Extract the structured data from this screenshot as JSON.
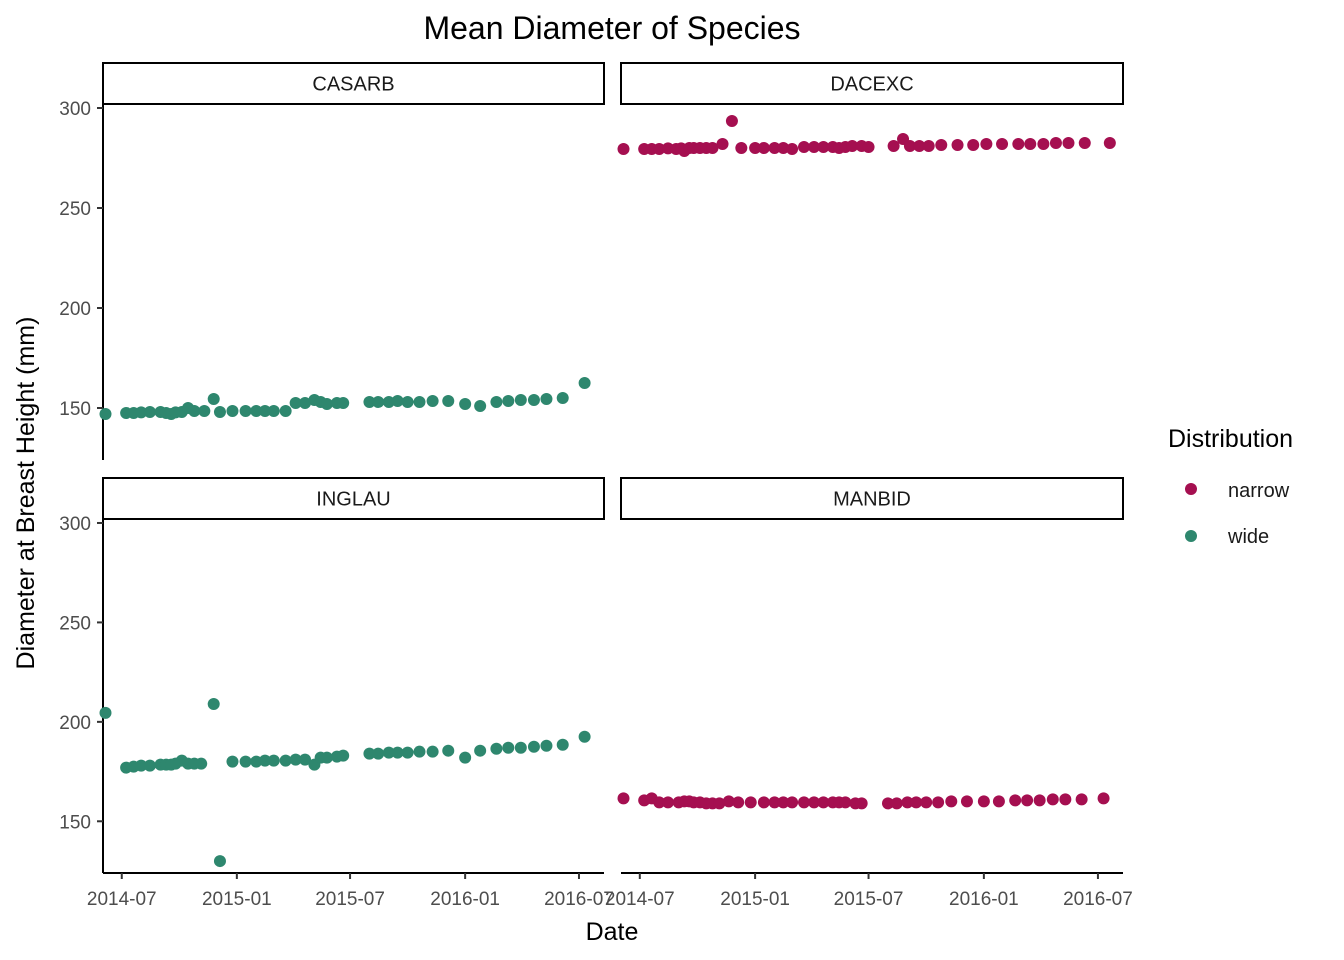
{
  "chart_data": {
    "type": "scatter",
    "title": "Mean Diameter of Species",
    "xlabel": "Date",
    "ylabel": "Diameter at Breast Height (mm)",
    "x_ticks": [
      "2014-07",
      "2015-01",
      "2015-07",
      "2016-01",
      "2016-07"
    ],
    "y_ticks": [
      150,
      200,
      250,
      300
    ],
    "xlim": [
      "2014-06-01",
      "2016-08-10"
    ],
    "ylim": [
      124,
      302
    ],
    "legend": {
      "title": "Distribution",
      "position": "right",
      "entries": [
        {
          "label": "narrow",
          "color": "#A50F50"
        },
        {
          "label": "wide",
          "color": "#2E876E"
        }
      ]
    },
    "facets": [
      {
        "label": "CASARB",
        "distribution": "wide",
        "points": [
          [
            "2014-06-05",
            147
          ],
          [
            "2014-07-08",
            147.5
          ],
          [
            "2014-07-20",
            147.5
          ],
          [
            "2014-08-01",
            147.8
          ],
          [
            "2014-08-15",
            148
          ],
          [
            "2014-09-01",
            148
          ],
          [
            "2014-09-10",
            147.5
          ],
          [
            "2014-09-18",
            147
          ],
          [
            "2014-09-25",
            147.8
          ],
          [
            "2014-10-05",
            148
          ],
          [
            "2014-10-15",
            150
          ],
          [
            "2014-10-25",
            148.5
          ],
          [
            "2014-11-10",
            148.5
          ],
          [
            "2014-11-25",
            154.5
          ],
          [
            "2014-12-05",
            148
          ],
          [
            "2014-12-25",
            148.5
          ],
          [
            "2015-01-15",
            148.5
          ],
          [
            "2015-02-01",
            148.5
          ],
          [
            "2015-02-15",
            148.5
          ],
          [
            "2015-03-01",
            148.5
          ],
          [
            "2015-03-20",
            148.5
          ],
          [
            "2015-04-05",
            152.5
          ],
          [
            "2015-04-20",
            152.5
          ],
          [
            "2015-05-05",
            154
          ],
          [
            "2015-05-15",
            153
          ],
          [
            "2015-05-25",
            152
          ],
          [
            "2015-06-10",
            152.5
          ],
          [
            "2015-06-20",
            152.5
          ],
          [
            "2015-08-01",
            153
          ],
          [
            "2015-08-15",
            153
          ],
          [
            "2015-09-01",
            153
          ],
          [
            "2015-09-15",
            153.5
          ],
          [
            "2015-10-01",
            153
          ],
          [
            "2015-10-20",
            153
          ],
          [
            "2015-11-10",
            153.5
          ],
          [
            "2015-12-05",
            153.5
          ],
          [
            "2016-01-01",
            152
          ],
          [
            "2016-01-25",
            151
          ],
          [
            "2016-02-20",
            153
          ],
          [
            "2016-03-10",
            153.5
          ],
          [
            "2016-03-30",
            154
          ],
          [
            "2016-04-20",
            154
          ],
          [
            "2016-05-10",
            154.5
          ],
          [
            "2016-06-05",
            155
          ],
          [
            "2016-07-10",
            162.5
          ]
        ]
      },
      {
        "label": "DACEXC",
        "distribution": "narrow",
        "points": [
          [
            "2014-06-05",
            279.5
          ],
          [
            "2014-07-08",
            279.5
          ],
          [
            "2014-07-20",
            279.5
          ],
          [
            "2014-08-01",
            279.5
          ],
          [
            "2014-08-15",
            279.8
          ],
          [
            "2014-08-28",
            279.5
          ],
          [
            "2014-09-05",
            279.8
          ],
          [
            "2014-09-10",
            278.5
          ],
          [
            "2014-09-18",
            280
          ],
          [
            "2014-09-25",
            280
          ],
          [
            "2014-10-05",
            280
          ],
          [
            "2014-10-15",
            280
          ],
          [
            "2014-10-25",
            280
          ],
          [
            "2014-11-10",
            282
          ],
          [
            "2014-11-25",
            293.5
          ],
          [
            "2014-12-10",
            280
          ],
          [
            "2015-01-01",
            280
          ],
          [
            "2015-01-15",
            280
          ],
          [
            "2015-02-01",
            280
          ],
          [
            "2015-02-15",
            280
          ],
          [
            "2015-03-01",
            279.5
          ],
          [
            "2015-03-20",
            280.5
          ],
          [
            "2015-04-05",
            280.5
          ],
          [
            "2015-04-20",
            280.5
          ],
          [
            "2015-05-05",
            280.5
          ],
          [
            "2015-05-15",
            280
          ],
          [
            "2015-05-25",
            280.5
          ],
          [
            "2015-06-05",
            281
          ],
          [
            "2015-06-20",
            281
          ],
          [
            "2015-07-01",
            280.5
          ],
          [
            "2015-08-10",
            281
          ],
          [
            "2015-08-25",
            284.5
          ],
          [
            "2015-09-05",
            281
          ],
          [
            "2015-09-20",
            281
          ],
          [
            "2015-10-05",
            281
          ],
          [
            "2015-10-25",
            281.5
          ],
          [
            "2015-11-20",
            281.5
          ],
          [
            "2015-12-15",
            281.5
          ],
          [
            "2016-01-05",
            282
          ],
          [
            "2016-01-30",
            282
          ],
          [
            "2016-02-25",
            282
          ],
          [
            "2016-03-15",
            282
          ],
          [
            "2016-04-05",
            282
          ],
          [
            "2016-04-25",
            282.5
          ],
          [
            "2016-05-15",
            282.5
          ],
          [
            "2016-06-10",
            282.5
          ],
          [
            "2016-07-20",
            282.5
          ]
        ]
      },
      {
        "label": "INGLAU",
        "distribution": "wide",
        "points": [
          [
            "2014-06-05",
            204.5
          ],
          [
            "2014-07-08",
            177
          ],
          [
            "2014-07-20",
            177.5
          ],
          [
            "2014-08-01",
            178
          ],
          [
            "2014-08-15",
            178
          ],
          [
            "2014-09-01",
            178.5
          ],
          [
            "2014-09-10",
            178.5
          ],
          [
            "2014-09-18",
            178.5
          ],
          [
            "2014-09-25",
            179
          ],
          [
            "2014-10-05",
            180.5
          ],
          [
            "2014-10-15",
            179
          ],
          [
            "2014-10-25",
            179
          ],
          [
            "2014-11-05",
            179
          ],
          [
            "2014-11-25",
            209
          ],
          [
            "2014-12-05",
            130
          ],
          [
            "2014-12-25",
            180
          ],
          [
            "2015-01-15",
            180
          ],
          [
            "2015-02-01",
            180
          ],
          [
            "2015-02-15",
            180.5
          ],
          [
            "2015-03-01",
            180.5
          ],
          [
            "2015-03-20",
            180.5
          ],
          [
            "2015-04-05",
            181
          ],
          [
            "2015-04-20",
            181
          ],
          [
            "2015-05-05",
            178.5
          ],
          [
            "2015-05-15",
            182
          ],
          [
            "2015-05-25",
            182
          ],
          [
            "2015-06-10",
            182.5
          ],
          [
            "2015-06-20",
            183
          ],
          [
            "2015-08-01",
            184
          ],
          [
            "2015-08-15",
            184
          ],
          [
            "2015-09-01",
            184.5
          ],
          [
            "2015-09-15",
            184.5
          ],
          [
            "2015-10-01",
            184.5
          ],
          [
            "2015-10-20",
            185
          ],
          [
            "2015-11-10",
            185
          ],
          [
            "2015-12-05",
            185.5
          ],
          [
            "2016-01-01",
            182
          ],
          [
            "2016-01-25",
            185.5
          ],
          [
            "2016-02-20",
            186.5
          ],
          [
            "2016-03-10",
            187
          ],
          [
            "2016-03-30",
            187
          ],
          [
            "2016-04-20",
            187.5
          ],
          [
            "2016-05-10",
            188
          ],
          [
            "2016-06-05",
            188.5
          ],
          [
            "2016-07-10",
            192.5
          ]
        ]
      },
      {
        "label": "MANBID",
        "distribution": "narrow",
        "points": [
          [
            "2014-06-05",
            161.5
          ],
          [
            "2014-07-08",
            160.5
          ],
          [
            "2014-07-20",
            161.5
          ],
          [
            "2014-08-01",
            159.5
          ],
          [
            "2014-08-15",
            159.5
          ],
          [
            "2014-09-01",
            159.5
          ],
          [
            "2014-09-10",
            160
          ],
          [
            "2014-09-18",
            160
          ],
          [
            "2014-09-25",
            159.5
          ],
          [
            "2014-10-05",
            159.5
          ],
          [
            "2014-10-15",
            159
          ],
          [
            "2014-10-25",
            159
          ],
          [
            "2014-11-05",
            159
          ],
          [
            "2014-11-20",
            160
          ],
          [
            "2014-12-05",
            159.5
          ],
          [
            "2014-12-25",
            159.5
          ],
          [
            "2015-01-15",
            159.5
          ],
          [
            "2015-02-01",
            159.5
          ],
          [
            "2015-02-15",
            159.5
          ],
          [
            "2015-03-01",
            159.5
          ],
          [
            "2015-03-20",
            159.5
          ],
          [
            "2015-04-05",
            159.5
          ],
          [
            "2015-04-20",
            159.5
          ],
          [
            "2015-05-05",
            159.5
          ],
          [
            "2015-05-15",
            159.5
          ],
          [
            "2015-05-25",
            159.5
          ],
          [
            "2015-06-10",
            159
          ],
          [
            "2015-06-20",
            159
          ],
          [
            "2015-08-01",
            159
          ],
          [
            "2015-08-15",
            159
          ],
          [
            "2015-09-01",
            159.5
          ],
          [
            "2015-09-15",
            159.5
          ],
          [
            "2015-10-01",
            159.5
          ],
          [
            "2015-10-20",
            159.5
          ],
          [
            "2015-11-10",
            160
          ],
          [
            "2015-12-05",
            160
          ],
          [
            "2016-01-01",
            160
          ],
          [
            "2016-01-25",
            160
          ],
          [
            "2016-02-20",
            160.5
          ],
          [
            "2016-03-10",
            160.5
          ],
          [
            "2016-03-30",
            160.5
          ],
          [
            "2016-04-20",
            161
          ],
          [
            "2016-05-10",
            161
          ],
          [
            "2016-06-05",
            161
          ],
          [
            "2016-07-10",
            161.5
          ]
        ]
      }
    ]
  }
}
